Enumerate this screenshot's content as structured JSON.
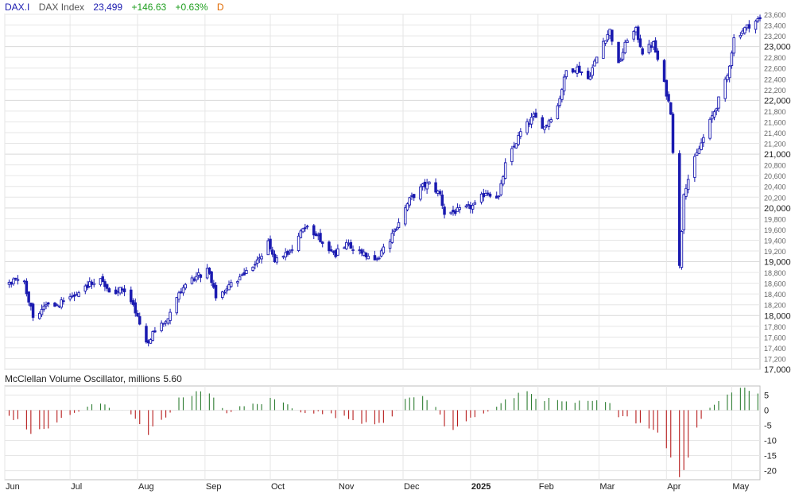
{
  "header": {
    "symbol": "DAX.I",
    "name": "DAX Index",
    "price": "23,499",
    "change": "+146.63",
    "change_pct": "+0.63%",
    "period": "D"
  },
  "oscillator": {
    "title": "McClellan Volume Oscillator, millions",
    "value": "5.60"
  },
  "colors": {
    "candle": "#1a1ab0",
    "osc_positive": "#2e7d32",
    "osc_negative": "#b71c1c",
    "grid": "#e6e6e6"
  },
  "chart_data": [
    {
      "type": "candlestick",
      "title": "DAX Index",
      "xlabel": "",
      "ylabel": "",
      "ylim": [
        17000,
        23600
      ],
      "grid": true,
      "y_ticks": [
        17000,
        17200,
        17400,
        17600,
        17800,
        18000,
        18200,
        18400,
        18600,
        18800,
        19000,
        19200,
        19400,
        19600,
        19800,
        20000,
        20200,
        20400,
        20600,
        20800,
        21000,
        21200,
        21400,
        21600,
        21800,
        22000,
        22200,
        22400,
        22600,
        22800,
        23000,
        23200,
        23400,
        23600
      ],
      "y_major": [
        17000,
        18000,
        19000,
        20000,
        21000,
        22000,
        23000
      ],
      "x_ticks": [
        "Jun",
        "Jul",
        "Aug",
        "Sep",
        "Oct",
        "Nov",
        "Dec",
        "2025",
        "Feb",
        "Mar",
        "Apr",
        "May"
      ],
      "x_tick_dates": [
        "2024-06-01",
        "2024-07-01",
        "2024-08-01",
        "2024-09-01",
        "2024-10-01",
        "2024-11-01",
        "2024-12-01",
        "2025-01-01",
        "2025-02-01",
        "2025-03-01",
        "2025-04-01",
        "2025-05-01"
      ],
      "x_range": [
        "2024-06-01",
        "2025-05-14"
      ],
      "series": [
        {
          "close_path": [
            [
              "2024-06-01",
              18500
            ],
            [
              "2024-06-05",
              18650
            ],
            [
              "2024-06-10",
              18600
            ],
            [
              "2024-06-14",
              18000
            ],
            [
              "2024-06-20",
              18150
            ],
            [
              "2024-06-28",
              18250
            ],
            [
              "2024-07-05",
              18450
            ],
            [
              "2024-07-10",
              18600
            ],
            [
              "2024-07-15",
              18700
            ],
            [
              "2024-07-20",
              18400
            ],
            [
              "2024-07-24",
              18500
            ],
            [
              "2024-07-30",
              18200
            ],
            [
              "2024-08-05",
              17450
            ],
            [
              "2024-08-08",
              17650
            ],
            [
              "2024-08-14",
              17900
            ],
            [
              "2024-08-19",
              18350
            ],
            [
              "2024-08-26",
              18650
            ],
            [
              "2024-09-02",
              18850
            ],
            [
              "2024-09-06",
              18350
            ],
            [
              "2024-09-11",
              18500
            ],
            [
              "2024-09-18",
              18750
            ],
            [
              "2024-09-25",
              19000
            ],
            [
              "2024-09-30",
              19350
            ],
            [
              "2024-10-03",
              19050
            ],
            [
              "2024-10-10",
              19200
            ],
            [
              "2024-10-14",
              19500
            ],
            [
              "2024-10-18",
              19650
            ],
            [
              "2024-10-24",
              19400
            ],
            [
              "2024-10-31",
              19150
            ],
            [
              "2024-11-05",
              19300
            ],
            [
              "2024-11-12",
              19200
            ],
            [
              "2024-11-18",
              19000
            ],
            [
              "2024-11-25",
              19400
            ],
            [
              "2024-11-29",
              19750
            ],
            [
              "2024-12-04",
              20150
            ],
            [
              "2024-12-10",
              20400
            ],
            [
              "2024-12-13",
              20450
            ],
            [
              "2024-12-18",
              20250
            ],
            [
              "2024-12-20",
              19900
            ],
            [
              "2024-12-27",
              19950
            ],
            [
              "2025-01-03",
              20050
            ],
            [
              "2025-01-08",
              20300
            ],
            [
              "2025-01-14",
              20200
            ],
            [
              "2025-01-17",
              20800
            ],
            [
              "2025-01-24",
              21400
            ],
            [
              "2025-01-30",
              21700
            ],
            [
              "2025-02-04",
              21500
            ],
            [
              "2025-02-10",
              21900
            ],
            [
              "2025-02-14",
              22550
            ],
            [
              "2025-02-19",
              22600
            ],
            [
              "2025-02-24",
              22400
            ],
            [
              "2025-03-03",
              23100
            ],
            [
              "2025-03-06",
              23300
            ],
            [
              "2025-03-10",
              22650
            ],
            [
              "2025-03-14",
              23150
            ],
            [
              "2025-03-18",
              23300
            ],
            [
              "2025-03-21",
              22900
            ],
            [
              "2025-03-26",
              23050
            ],
            [
              "2025-03-31",
              22300
            ],
            [
              "2025-04-03",
              21800
            ],
            [
              "2025-04-07",
              18900
            ],
            [
              "2025-04-09",
              20300
            ],
            [
              "2025-04-14",
              20900
            ],
            [
              "2025-04-17",
              21200
            ],
            [
              "2025-04-24",
              21900
            ],
            [
              "2025-04-29",
              22450
            ],
            [
              "2025-05-02",
              23150
            ],
            [
              "2025-05-06",
              23300
            ],
            [
              "2025-05-09",
              23400
            ],
            [
              "2025-05-13",
              23499
            ]
          ]
        }
      ]
    },
    {
      "type": "bar",
      "title": "McClellan Volume Oscillator, millions 5.60",
      "ylim": [
        -23,
        8
      ],
      "y_ticks": [
        5,
        0,
        -5,
        -10,
        -15,
        -20
      ],
      "last_value": 5.6,
      "series": [
        {
          "anchors": [
            [
              "2024-06-01",
              -1
            ],
            [
              "2024-06-06",
              -3
            ],
            [
              "2024-06-14",
              -8
            ],
            [
              "2024-06-20",
              -6
            ],
            [
              "2024-06-27",
              -3
            ],
            [
              "2024-07-03",
              -1
            ],
            [
              "2024-07-08",
              1
            ],
            [
              "2024-07-15",
              2
            ],
            [
              "2024-07-22",
              0
            ],
            [
              "2024-07-29",
              -1
            ],
            [
              "2024-08-02",
              -4
            ],
            [
              "2024-08-05",
              -9
            ],
            [
              "2024-08-09",
              -5
            ],
            [
              "2024-08-14",
              -2
            ],
            [
              "2024-08-19",
              3
            ],
            [
              "2024-08-23",
              5
            ],
            [
              "2024-08-30",
              6
            ],
            [
              "2024-09-03",
              5
            ],
            [
              "2024-09-07",
              2
            ],
            [
              "2024-09-12",
              -1
            ],
            [
              "2024-09-18",
              1
            ],
            [
              "2024-09-24",
              2
            ],
            [
              "2024-09-30",
              3
            ],
            [
              "2024-10-02",
              4
            ],
            [
              "2024-10-08",
              2
            ],
            [
              "2024-10-14",
              0
            ],
            [
              "2024-10-24",
              -1
            ],
            [
              "2024-11-01",
              -2
            ],
            [
              "2024-11-07",
              -3
            ],
            [
              "2024-11-14",
              -4
            ],
            [
              "2024-11-21",
              -4
            ],
            [
              "2024-11-27",
              -1
            ],
            [
              "2024-12-02",
              3
            ],
            [
              "2024-12-07",
              5
            ],
            [
              "2024-12-12",
              4
            ],
            [
              "2024-12-16",
              1
            ],
            [
              "2024-12-20",
              -5
            ],
            [
              "2024-12-24",
              -7
            ],
            [
              "2024-12-30",
              -3
            ],
            [
              "2025-01-06",
              -1
            ],
            [
              "2025-01-12",
              1
            ],
            [
              "2025-01-20",
              4
            ],
            [
              "2025-01-26",
              6
            ],
            [
              "2025-02-02",
              3
            ],
            [
              "2025-02-08",
              4
            ],
            [
              "2025-02-15",
              2
            ],
            [
              "2025-02-22",
              3
            ],
            [
              "2025-03-01",
              4
            ],
            [
              "2025-03-06",
              2
            ],
            [
              "2025-03-10",
              -2
            ],
            [
              "2025-03-16",
              -3
            ],
            [
              "2025-03-22",
              -5
            ],
            [
              "2025-03-28",
              -8
            ],
            [
              "2025-04-03",
              -15
            ],
            [
              "2025-04-07",
              -22
            ],
            [
              "2025-04-10",
              -18
            ],
            [
              "2025-04-15",
              -6
            ],
            [
              "2025-04-20",
              0
            ],
            [
              "2025-04-26",
              4
            ],
            [
              "2025-05-01",
              6
            ],
            [
              "2025-05-07",
              7
            ],
            [
              "2025-05-13",
              5.6
            ]
          ]
        }
      ]
    }
  ]
}
